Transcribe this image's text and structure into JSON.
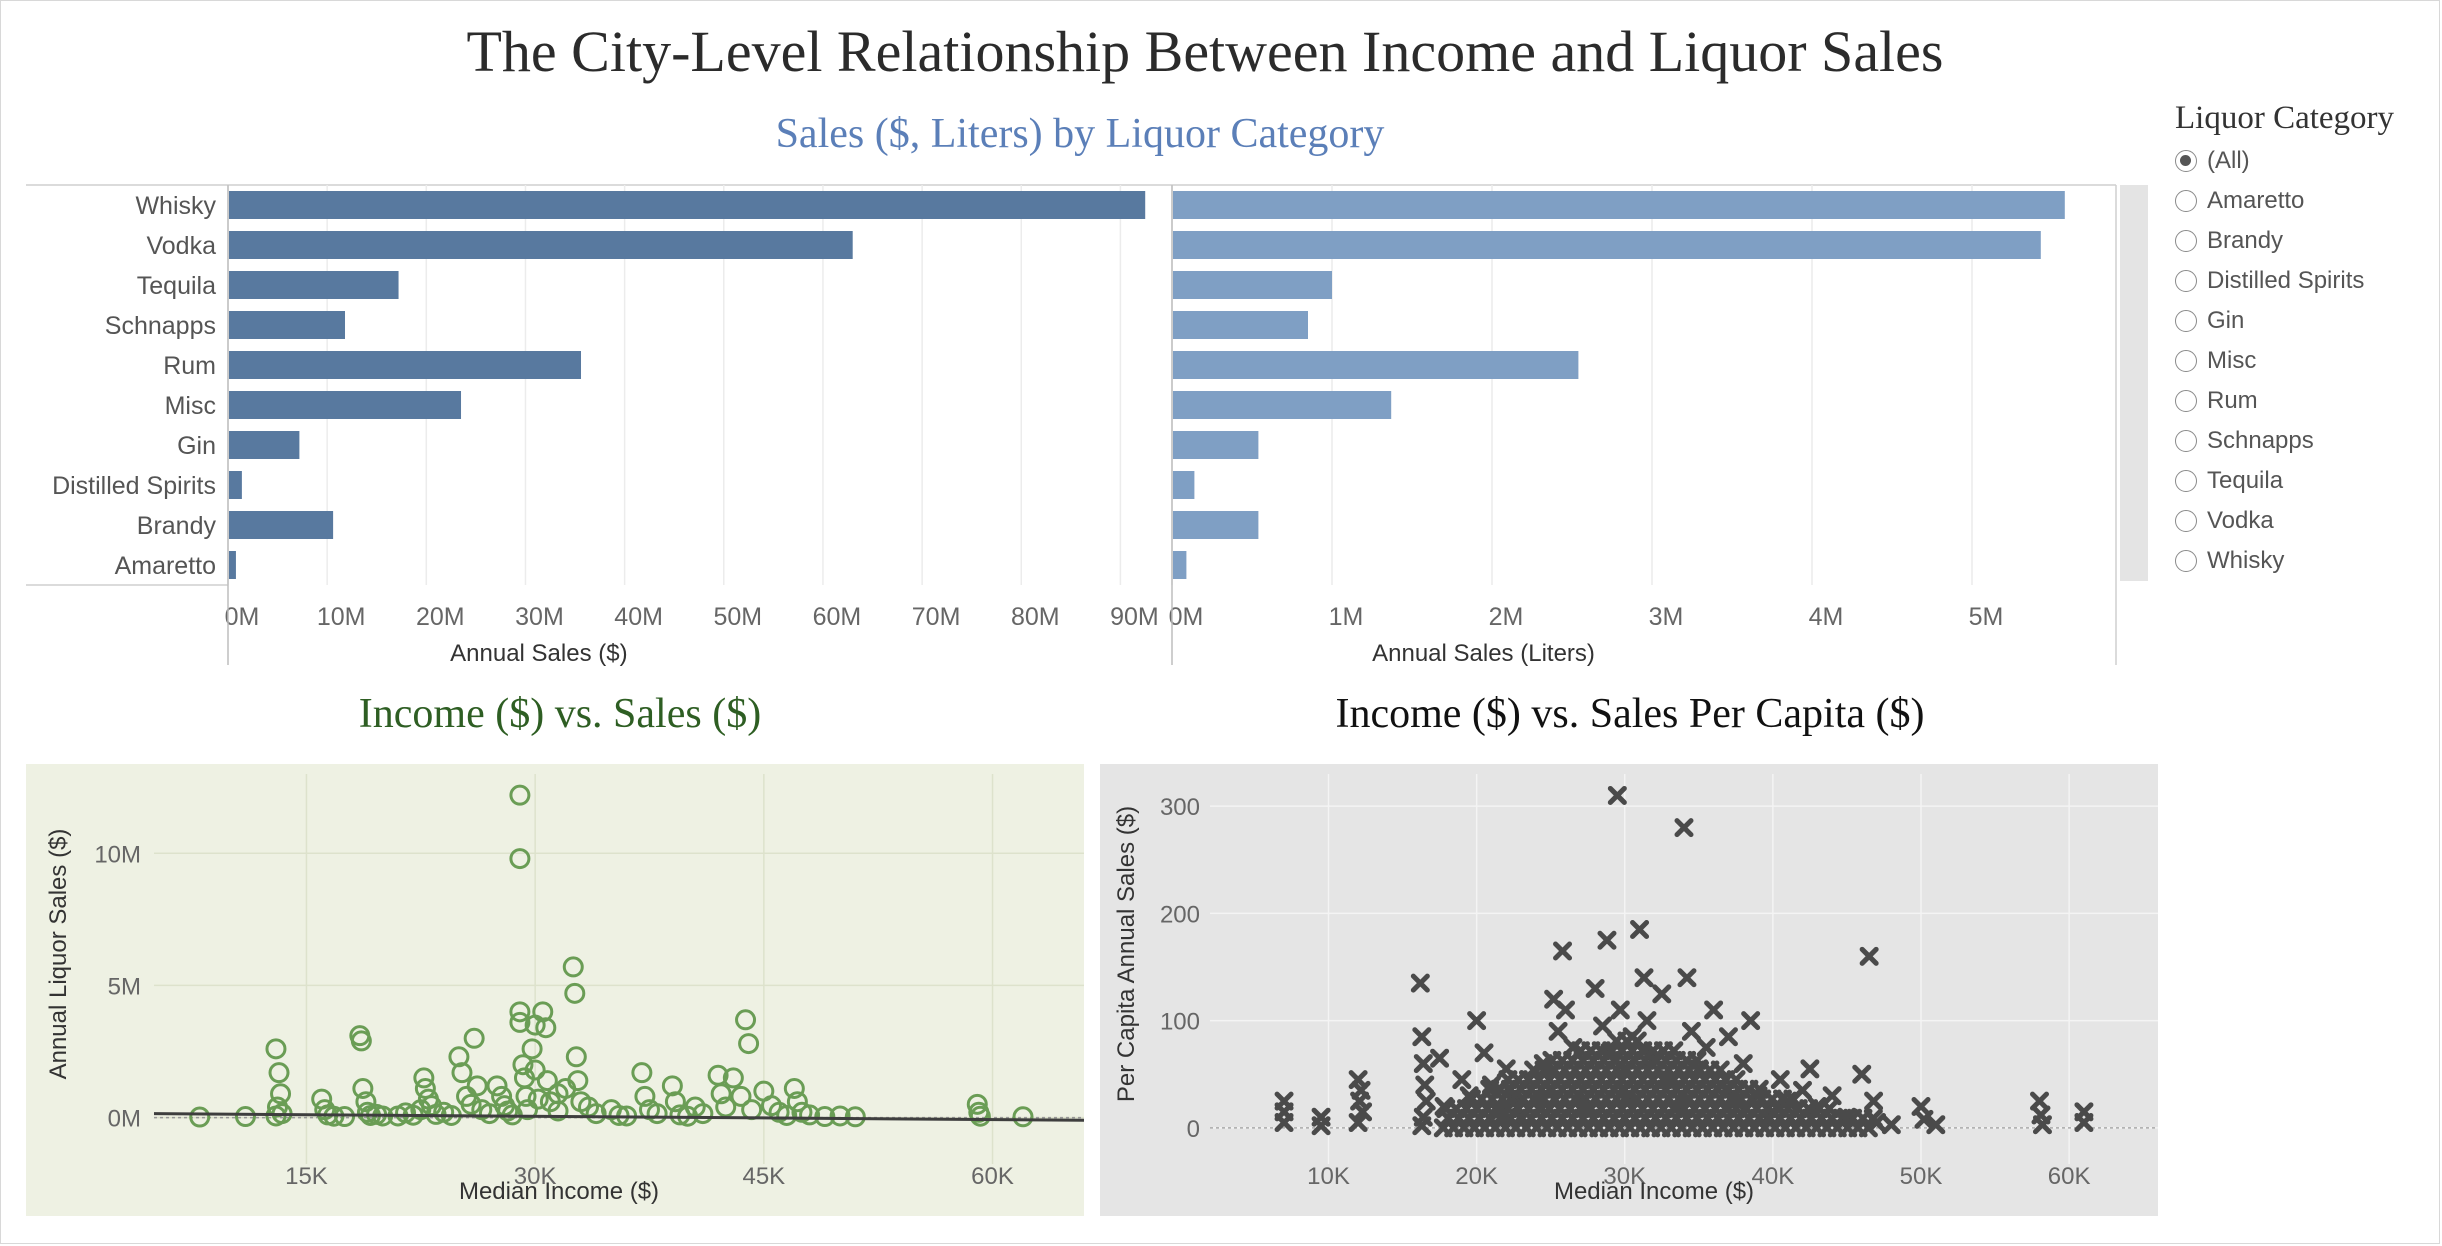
{
  "dashboard_title": "The City-Level Relationship Between Income and Liquor Sales",
  "filter": {
    "title": "Liquor Category",
    "options": [
      "(All)",
      "Amaretto",
      "Brandy",
      "Distilled Spirits",
      "Gin",
      "Misc",
      "Rum",
      "Schnapps",
      "Tequila",
      "Vodka",
      "Whisky"
    ],
    "selected": "(All)"
  },
  "colors": {
    "bar_dollars": "#58799f",
    "bar_liters": "#7f9fc4",
    "scatter_green": "#6a9d55",
    "scatter_green_bg": "#eef1e3",
    "scatter_gray": "#4a4a4a",
    "scatter_gray_bg": "#e5e5e5",
    "title_blue": "#5b7fb8",
    "title_green": "#2e5e23"
  },
  "chart_data": [
    {
      "type": "bar",
      "title": "Sales ($, Liters) by Liquor Category",
      "categories": [
        "Whisky",
        "Vodka",
        "Tequila",
        "Schnapps",
        "Rum",
        "Misc",
        "Gin",
        "Distilled Spirits",
        "Brandy",
        "Amaretto"
      ],
      "xlabel": "Annual Sales ($)",
      "xlim": [
        0,
        95000000
      ],
      "ticks": [
        "0M",
        "10M",
        "20M",
        "30M",
        "40M",
        "50M",
        "60M",
        "70M",
        "80M",
        "90M"
      ],
      "values": [
        92500000,
        63000000,
        17200000,
        11800000,
        35600000,
        23500000,
        7200000,
        1400000,
        10600000,
        800000
      ]
    },
    {
      "type": "bar",
      "xlabel": "Annual Sales (Liters)",
      "xlim": [
        0,
        5900000
      ],
      "ticks": [
        "0M",
        "1M",
        "2M",
        "3M",
        "4M",
        "5M"
      ],
      "values": [
        5580000,
        5430000,
        1000000,
        850000,
        2540000,
        1370000,
        540000,
        140000,
        540000,
        90000
      ]
    },
    {
      "type": "scatter",
      "title": "Income ($) vs. Sales ($)",
      "xlabel": "Median Income ($)",
      "ylabel": "Annual Liquor Sales ($)",
      "xlim": [
        5000,
        66000
      ],
      "ylim": [
        -1000000,
        13000000
      ],
      "xticks": [
        "15K",
        "30K",
        "45K",
        "60K"
      ],
      "yticks": [
        "0M",
        "5M",
        "10M"
      ],
      "trend": [
        [
          5000,
          150000
        ],
        [
          66000,
          -100000
        ]
      ],
      "points": [
        [
          8000,
          20000
        ],
        [
          11000,
          40000
        ],
        [
          13000,
          2600000
        ],
        [
          13200,
          1700000
        ],
        [
          13300,
          900000
        ],
        [
          13100,
          400000
        ],
        [
          13400,
          150000
        ],
        [
          13000,
          60000
        ],
        [
          16000,
          700000
        ],
        [
          16200,
          300000
        ],
        [
          16400,
          100000
        ],
        [
          16800,
          50000
        ],
        [
          17500,
          40000
        ],
        [
          18500,
          3100000
        ],
        [
          18600,
          2900000
        ],
        [
          18700,
          1100000
        ],
        [
          18900,
          600000
        ],
        [
          19000,
          200000
        ],
        [
          19200,
          80000
        ],
        [
          19600,
          120000
        ],
        [
          20000,
          60000
        ],
        [
          21000,
          60000
        ],
        [
          21500,
          180000
        ],
        [
          22000,
          90000
        ],
        [
          22500,
          300000
        ],
        [
          22700,
          1500000
        ],
        [
          22800,
          1100000
        ],
        [
          23000,
          700000
        ],
        [
          23200,
          450000
        ],
        [
          23500,
          120000
        ],
        [
          24000,
          200000
        ],
        [
          24500,
          80000
        ],
        [
          25000,
          2300000
        ],
        [
          25200,
          1700000
        ],
        [
          25500,
          800000
        ],
        [
          25800,
          500000
        ],
        [
          26000,
          3000000
        ],
        [
          26200,
          1200000
        ],
        [
          26500,
          300000
        ],
        [
          27000,
          150000
        ],
        [
          27500,
          1200000
        ],
        [
          27800,
          800000
        ],
        [
          28000,
          450000
        ],
        [
          28200,
          250000
        ],
        [
          28500,
          100000
        ],
        [
          29000,
          12200000
        ],
        [
          29000,
          9800000
        ],
        [
          29000,
          4000000
        ],
        [
          29000,
          3600000
        ],
        [
          29200,
          2000000
        ],
        [
          29300,
          1500000
        ],
        [
          29400,
          800000
        ],
        [
          29500,
          300000
        ],
        [
          29800,
          2600000
        ],
        [
          30000,
          3500000
        ],
        [
          30000,
          1800000
        ],
        [
          30200,
          700000
        ],
        [
          30500,
          4000000
        ],
        [
          30700,
          3400000
        ],
        [
          30800,
          1400000
        ],
        [
          31000,
          600000
        ],
        [
          31500,
          900000
        ],
        [
          31500,
          250000
        ],
        [
          32000,
          1100000
        ],
        [
          32500,
          5700000
        ],
        [
          32600,
          4700000
        ],
        [
          32700,
          2300000
        ],
        [
          32800,
          1400000
        ],
        [
          33000,
          600000
        ],
        [
          33500,
          400000
        ],
        [
          34000,
          150000
        ],
        [
          35000,
          300000
        ],
        [
          35500,
          80000
        ],
        [
          36000,
          60000
        ],
        [
          37000,
          1700000
        ],
        [
          37200,
          800000
        ],
        [
          37500,
          300000
        ],
        [
          38000,
          150000
        ],
        [
          39000,
          1200000
        ],
        [
          39200,
          600000
        ],
        [
          39500,
          100000
        ],
        [
          40000,
          50000
        ],
        [
          40500,
          400000
        ],
        [
          41000,
          150000
        ],
        [
          42000,
          1600000
        ],
        [
          42200,
          900000
        ],
        [
          42500,
          400000
        ],
        [
          43000,
          1500000
        ],
        [
          43500,
          800000
        ],
        [
          43800,
          3700000
        ],
        [
          44000,
          2800000
        ],
        [
          44200,
          300000
        ],
        [
          45000,
          1000000
        ],
        [
          45500,
          450000
        ],
        [
          46000,
          200000
        ],
        [
          46500,
          80000
        ],
        [
          47000,
          1100000
        ],
        [
          47200,
          600000
        ],
        [
          47500,
          200000
        ],
        [
          48000,
          100000
        ],
        [
          49000,
          40000
        ],
        [
          50000,
          60000
        ],
        [
          51000,
          30000
        ],
        [
          59000,
          500000
        ],
        [
          59100,
          200000
        ],
        [
          59200,
          50000
        ],
        [
          62000,
          30000
        ]
      ]
    },
    {
      "type": "scatter",
      "title": "Income ($) vs. Sales Per Capita ($)",
      "xlabel": "Median Income ($)",
      "ylabel": "Per Capita Annual Sales ($)",
      "xlim": [
        2000,
        66000
      ],
      "ylim": [
        -15,
        330
      ],
      "xticks": [
        "10K",
        "20K",
        "30K",
        "40K",
        "50K",
        "60K"
      ],
      "yticks": [
        "0",
        "100",
        "200",
        "300"
      ],
      "points": [
        [
          7000,
          25
        ],
        [
          7000,
          15
        ],
        [
          7000,
          5
        ],
        [
          9500,
          10
        ],
        [
          9500,
          2
        ],
        [
          12000,
          45
        ],
        [
          12200,
          35
        ],
        [
          12100,
          25
        ],
        [
          12300,
          15
        ],
        [
          12000,
          5
        ],
        [
          16200,
          135
        ],
        [
          16300,
          85
        ],
        [
          16400,
          60
        ],
        [
          16500,
          40
        ],
        [
          16600,
          25
        ],
        [
          16400,
          10
        ],
        [
          16300,
          2
        ],
        [
          17500,
          65
        ],
        [
          17800,
          20
        ],
        [
          19000,
          45
        ],
        [
          19500,
          30
        ],
        [
          20000,
          100
        ],
        [
          20500,
          70
        ],
        [
          21000,
          40
        ],
        [
          21500,
          15
        ],
        [
          22000,
          55
        ],
        [
          22500,
          30
        ],
        [
          23000,
          10
        ],
        [
          23500,
          45
        ],
        [
          24000,
          25
        ],
        [
          24500,
          60
        ],
        [
          25000,
          35
        ],
        [
          25200,
          120
        ],
        [
          25500,
          90
        ],
        [
          25800,
          165
        ],
        [
          26000,
          110
        ],
        [
          26500,
          75
        ],
        [
          27000,
          45
        ],
        [
          27500,
          20
        ],
        [
          28000,
          130
        ],
        [
          28500,
          95
        ],
        [
          28800,
          175
        ],
        [
          29000,
          70
        ],
        [
          29500,
          310
        ],
        [
          29700,
          110
        ],
        [
          30000,
          55
        ],
        [
          30200,
          30
        ],
        [
          30500,
          85
        ],
        [
          31000,
          185
        ],
        [
          31300,
          140
        ],
        [
          31500,
          100
        ],
        [
          32000,
          65
        ],
        [
          32500,
          125
        ],
        [
          33000,
          45
        ],
        [
          33500,
          20
        ],
        [
          34000,
          280
        ],
        [
          34200,
          140
        ],
        [
          34500,
          90
        ],
        [
          35000,
          55
        ],
        [
          35500,
          75
        ],
        [
          36000,
          110
        ],
        [
          36500,
          40
        ],
        [
          37000,
          85
        ],
        [
          37500,
          25
        ],
        [
          38000,
          60
        ],
        [
          38500,
          100
        ],
        [
          39000,
          30
        ],
        [
          40000,
          15
        ],
        [
          40500,
          45
        ],
        [
          41000,
          25
        ],
        [
          42000,
          35
        ],
        [
          42500,
          55
        ],
        [
          43000,
          20
        ],
        [
          44000,
          30
        ],
        [
          45000,
          10
        ],
        [
          46000,
          50
        ],
        [
          46500,
          160
        ],
        [
          46800,
          25
        ],
        [
          47000,
          5
        ],
        [
          48000,
          3
        ],
        [
          50000,
          20
        ],
        [
          50200,
          8
        ],
        [
          51000,
          3
        ],
        [
          58000,
          25
        ],
        [
          58100,
          12
        ],
        [
          58200,
          3
        ],
        [
          61000,
          15
        ],
        [
          61000,
          5
        ]
      ]
    }
  ]
}
